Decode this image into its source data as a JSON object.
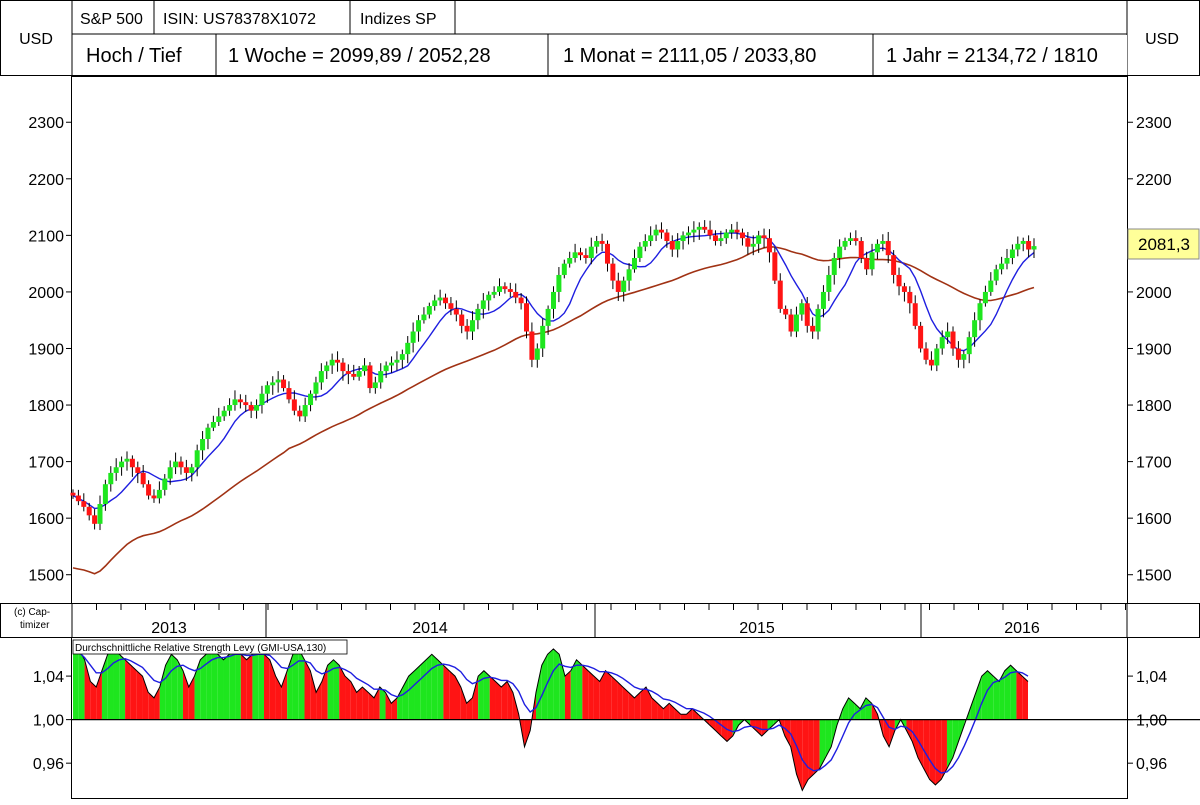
{
  "header": {
    "left_currency": "USD",
    "right_currency": "USD",
    "info_cells": [
      "S&P 500",
      "ISIN: US78378X1072",
      "Indizes SP"
    ],
    "hoch_tief_label": "Hoch / Tief",
    "week": "1 Woche = 2099,89 / 2052,28",
    "month": "1 Monat = 2111,05 / 2033,80",
    "year": "1 Jahr = 2134,72 / 1810"
  },
  "price_label": "2081,3",
  "copyright": "(c) Cap-\ntimizer",
  "years": [
    "2013",
    "2014",
    "2015",
    "2016"
  ],
  "price_axis_labels": [
    "2300",
    "2200",
    "2100",
    "2000",
    "1900",
    "1800",
    "1700",
    "1600",
    "1500"
  ],
  "indicator_axis_labels": [
    "1,04",
    "1,00",
    "0,96"
  ],
  "indicator_title": "Durchschnittliche Relative Strength Levy (GMI-USA,130)",
  "colors": {
    "up": "#1ee61e",
    "down": "#ff1414",
    "ma_fast": "#1e1ee0",
    "ma_slow": "#a03214",
    "label_bg": "#ffff99"
  },
  "chart_data": [
    {
      "type": "candlestick",
      "title": "S&P 500",
      "ylabel": "USD",
      "ylim": [
        1450,
        2380
      ],
      "y_ticks": [
        1500,
        1600,
        1700,
        1800,
        1900,
        2000,
        2100,
        2200,
        2300
      ],
      "x_tick_labels": [
        "2013",
        "2014",
        "2015",
        "2016"
      ],
      "grid": false,
      "last_price": 2081.3,
      "series_close": [
        1640,
        1630,
        1620,
        1605,
        1590,
        1625,
        1660,
        1680,
        1690,
        1700,
        1705,
        1690,
        1680,
        1660,
        1640,
        1635,
        1650,
        1670,
        1690,
        1700,
        1690,
        1680,
        1690,
        1720,
        1740,
        1760,
        1770,
        1780,
        1790,
        1800,
        1810,
        1805,
        1800,
        1790,
        1800,
        1820,
        1835,
        1840,
        1845,
        1830,
        1810,
        1790,
        1780,
        1800,
        1820,
        1840,
        1860,
        1870,
        1880,
        1875,
        1860,
        1855,
        1850,
        1860,
        1870,
        1830,
        1840,
        1860,
        1870,
        1875,
        1880,
        1890,
        1910,
        1930,
        1950,
        1960,
        1975,
        1985,
        1990,
        1980,
        1970,
        1960,
        1940,
        1930,
        1950,
        1970,
        1985,
        1995,
        2000,
        2010,
        2005,
        2000,
        1990,
        1980,
        1930,
        1880,
        1900,
        1940,
        1970,
        2000,
        2030,
        2050,
        2060,
        2070,
        2065,
        2060,
        2080,
        2090,
        2085,
        2050,
        2020,
        2000,
        2020,
        2040,
        2060,
        2080,
        2090,
        2100,
        2110,
        2105,
        2090,
        2075,
        2090,
        2100,
        2105,
        2110,
        2115,
        2110,
        2100,
        2090,
        2095,
        2105,
        2110,
        2105,
        2095,
        2080,
        2085,
        2100,
        2095,
        2070,
        2020,
        1970,
        1960,
        1930,
        1960,
        1980,
        1940,
        1930,
        1970,
        2000,
        2030,
        2060,
        2080,
        2090,
        2095,
        2090,
        2060,
        2040,
        2070,
        2085,
        2090,
        2065,
        2030,
        2010,
        2000,
        1980,
        1940,
        1900,
        1880,
        1870,
        1900,
        1920,
        1930,
        1900,
        1880,
        1890,
        1920,
        1950,
        1980,
        2000,
        2020,
        2040,
        2050,
        2060,
        2075,
        2085,
        2090,
        2075,
        2081
      ]
    },
    {
      "type": "line",
      "title": "Durchschnittliche Relative Strength Levy (GMI-USA,130)",
      "ylim": [
        0.928,
        1.075
      ],
      "y_ticks": [
        0.96,
        1.0,
        1.04
      ],
      "baseline": 1.0,
      "series": [
        {
          "values": [
            1.07,
            1.065,
            1.055,
            1.035,
            1.03,
            1.045,
            1.06,
            1.065,
            1.06,
            1.055,
            1.05,
            1.045,
            1.04,
            1.025,
            1.02,
            1.03,
            1.05,
            1.06,
            1.055,
            1.045,
            1.03,
            1.04,
            1.055,
            1.06,
            1.065,
            1.06,
            1.055,
            1.06,
            1.065,
            1.06,
            1.055,
            1.06,
            1.065,
            1.06,
            1.055,
            1.04,
            1.03,
            1.045,
            1.06,
            1.065,
            1.055,
            1.045,
            1.025,
            1.035,
            1.05,
            1.055,
            1.05,
            1.04,
            1.035,
            1.025,
            1.03,
            1.025,
            1.02,
            1.03,
            1.025,
            1.015,
            1.02,
            1.03,
            1.04,
            1.045,
            1.05,
            1.055,
            1.06,
            1.055,
            1.05,
            1.045,
            1.04,
            1.03,
            1.015,
            1.02,
            1.04,
            1.045,
            1.04,
            1.035,
            1.03,
            1.035,
            1.025,
            1.005,
            0.975,
            0.99,
            1.025,
            1.05,
            1.06,
            1.065,
            1.06,
            1.04,
            1.045,
            1.055,
            1.05,
            1.045,
            1.04,
            1.035,
            1.045,
            1.04,
            1.035,
            1.03,
            1.025,
            1.02,
            1.025,
            1.03,
            1.02,
            1.015,
            1.01,
            1.015,
            1.01,
            1.005,
            1.005,
            1.01,
            1.005,
            1.0,
            0.995,
            0.99,
            0.985,
            0.98,
            0.985,
            0.995,
            1.0,
            0.995,
            0.99,
            0.985,
            0.99,
            0.995,
            1.0,
            0.985,
            0.975,
            0.95,
            0.935,
            0.945,
            0.95,
            0.955,
            0.965,
            0.975,
            0.995,
            1.01,
            1.02,
            1.015,
            1.01,
            1.02,
            1.015,
            1.005,
            0.985,
            0.975,
            0.99,
            1.0,
            0.99,
            0.98,
            0.965,
            0.955,
            0.945,
            0.94,
            0.945,
            0.955,
            0.965,
            0.98,
            0.995,
            1.01,
            1.025,
            1.04,
            1.045,
            1.04,
            1.035,
            1.045,
            1.05,
            1.045,
            1.04,
            1.035
          ]
        },
        {
          "values": [
            1.065,
            1.062,
            1.057,
            1.05,
            1.043,
            1.043,
            1.047,
            1.052,
            1.055,
            1.056,
            1.054,
            1.051,
            1.048,
            1.042,
            1.036,
            1.034,
            1.038,
            1.045,
            1.049,
            1.05,
            1.047,
            1.045,
            1.047,
            1.051,
            1.055,
            1.057,
            1.057,
            1.058,
            1.06,
            1.06,
            1.059,
            1.059,
            1.06,
            1.06,
            1.059,
            1.054,
            1.048,
            1.047,
            1.05,
            1.054,
            1.054,
            1.052,
            1.045,
            1.042,
            1.044,
            1.047,
            1.048,
            1.046,
            1.043,
            1.038,
            1.035,
            1.032,
            1.028,
            1.028,
            1.027,
            1.023,
            1.021,
            1.023,
            1.027,
            1.032,
            1.037,
            1.042,
            1.047,
            1.05,
            1.051,
            1.05,
            1.048,
            1.044,
            1.037,
            1.033,
            1.035,
            1.038,
            1.039,
            1.038,
            1.036,
            1.036,
            1.033,
            1.026,
            1.014,
            1.007,
            1.011,
            1.022,
            1.034,
            1.045,
            1.051,
            1.049,
            1.048,
            1.05,
            1.05,
            1.049,
            1.047,
            1.044,
            1.044,
            1.043,
            1.041,
            1.038,
            1.034,
            1.03,
            1.028,
            1.028,
            1.026,
            1.023,
            1.019,
            1.018,
            1.016,
            1.013,
            1.01,
            1.01,
            1.008,
            1.006,
            1.003,
            0.999,
            0.995,
            0.991,
            0.989,
            0.99,
            0.993,
            0.994,
            0.993,
            0.991,
            0.991,
            0.992,
            0.995,
            0.992,
            0.987,
            0.976,
            0.963,
            0.956,
            0.953,
            0.954,
            0.958,
            0.963,
            0.973,
            0.985,
            0.997,
            1.005,
            1.009,
            1.013,
            1.014,
            1.011,
            1.002,
            0.993,
            0.991,
            0.994,
            0.993,
            0.989,
            0.981,
            0.972,
            0.963,
            0.955,
            0.951,
            0.952,
            0.957,
            0.965,
            0.976,
            0.988,
            1.001,
            1.015,
            1.027,
            1.034,
            1.036,
            1.039,
            1.043,
            1.044,
            1.043,
            1.04
          ]
        }
      ]
    }
  ]
}
